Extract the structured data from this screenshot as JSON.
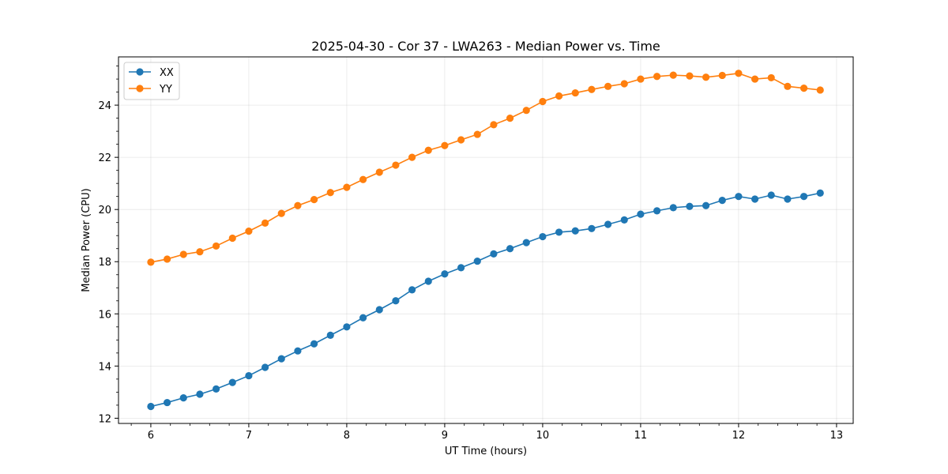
{
  "chart_data": {
    "type": "line",
    "title": "2025-04-30 - Cor 37 - LWA263 - Median Power vs. Time",
    "xlabel": "UT Time (hours)",
    "ylabel": "Median Power (CPU)",
    "xlim": [
      5.67,
      13.17
    ],
    "ylim": [
      11.8,
      25.85
    ],
    "xticks": [
      6,
      7,
      8,
      9,
      10,
      11,
      12,
      13
    ],
    "yticks": [
      12,
      14,
      16,
      18,
      20,
      22,
      24
    ],
    "grid": true,
    "legend_position": "top-left",
    "x": [
      6.0,
      6.1667,
      6.3333,
      6.5,
      6.6667,
      6.8333,
      7.0,
      7.1667,
      7.3333,
      7.5,
      7.6667,
      7.8333,
      8.0,
      8.1667,
      8.3333,
      8.5,
      8.6667,
      8.8333,
      9.0,
      9.1667,
      9.3333,
      9.5,
      9.6667,
      9.8333,
      10.0,
      10.1667,
      10.3333,
      10.5,
      10.6667,
      10.8333,
      11.0,
      11.1667,
      11.3333,
      11.5,
      11.6667,
      11.8333,
      12.0,
      12.1667,
      12.3333,
      12.5,
      12.6667,
      12.8333
    ],
    "series": [
      {
        "name": "XX",
        "color": "#1f77b4",
        "values": [
          12.45,
          12.6,
          12.78,
          12.92,
          13.12,
          13.37,
          13.63,
          13.95,
          14.28,
          14.58,
          14.85,
          15.18,
          15.5,
          15.85,
          16.16,
          16.5,
          16.92,
          17.25,
          17.53,
          17.77,
          18.02,
          18.3,
          18.5,
          18.73,
          18.96,
          19.13,
          19.18,
          19.27,
          19.43,
          19.6,
          19.82,
          19.95,
          20.07,
          20.12,
          20.15,
          20.35,
          20.5,
          20.4,
          20.55,
          20.4,
          20.5,
          20.63
        ]
      },
      {
        "name": "YY",
        "color": "#ff7f0e",
        "values": [
          17.98,
          18.1,
          18.28,
          18.38,
          18.6,
          18.9,
          19.17,
          19.48,
          19.85,
          20.15,
          20.38,
          20.65,
          20.85,
          21.15,
          21.43,
          21.7,
          22.0,
          22.27,
          22.45,
          22.67,
          22.88,
          23.25,
          23.5,
          23.8,
          24.14,
          24.35,
          24.47,
          24.6,
          24.72,
          24.82,
          25.0,
          25.1,
          25.15,
          25.12,
          25.07,
          25.14,
          25.22,
          25.0,
          25.05,
          24.72,
          24.65,
          24.58
        ]
      }
    ]
  }
}
